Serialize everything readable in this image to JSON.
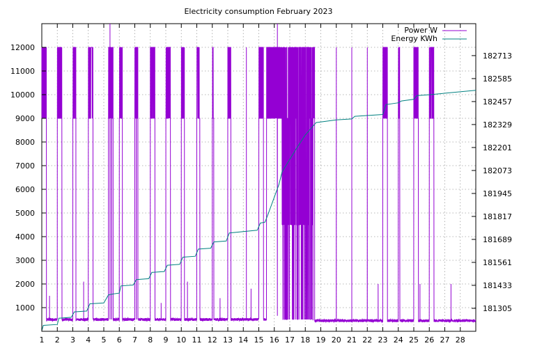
{
  "chart_data": {
    "type": "line",
    "title": "Electricity consumption February 2023",
    "xlabel": "",
    "ylabel": "",
    "y2label": "",
    "xlim": [
      1,
      29
    ],
    "ylim": [
      0,
      13000
    ],
    "y2lim": [
      181177,
      182891
    ],
    "x_ticks": [
      1,
      2,
      3,
      4,
      5,
      6,
      7,
      8,
      9,
      10,
      11,
      12,
      13,
      14,
      15,
      16,
      17,
      18,
      19,
      20,
      21,
      22,
      23,
      24,
      25,
      26,
      27,
      28
    ],
    "y_ticks": [
      1000,
      2000,
      3000,
      4000,
      5000,
      6000,
      7000,
      8000,
      9000,
      10000,
      11000,
      12000
    ],
    "y2_ticks": [
      181305,
      181433,
      181561,
      181689,
      181817,
      181945,
      182073,
      182201,
      182329,
      182457,
      182585,
      182713
    ],
    "grid": true,
    "legend_position": "top-right",
    "series": [
      {
        "name": "Power W",
        "axis": "left",
        "color": "#9400d3",
        "baseline": [
          [
            1,
            500
          ],
          [
            15.5,
            500
          ],
          [
            16.4,
            700
          ],
          [
            18.6,
            450
          ],
          [
            29,
            450
          ]
        ],
        "bursts": [
          [
            1,
            1.3
          ],
          [
            2,
            2.3
          ],
          [
            3,
            3.2
          ],
          [
            4,
            4.3
          ],
          [
            5.3,
            5.6
          ],
          [
            6,
            6.2
          ],
          [
            7,
            7.2
          ],
          [
            8,
            8.3
          ],
          [
            9,
            9.3
          ],
          [
            10,
            10.2
          ],
          [
            11,
            11.2
          ],
          [
            12,
            12.1
          ],
          [
            13,
            13.2
          ],
          [
            15,
            15.3
          ],
          [
            15.5,
            18.6
          ],
          [
            23,
            23.3
          ],
          [
            24,
            24.1
          ],
          [
            25,
            25.3
          ],
          [
            26,
            26.3
          ]
        ],
        "burst_low": 9000,
        "burst_high": 12000,
        "dense_region": [
          16.5,
          18.5
        ],
        "dense_low": 4500,
        "dense_low_alt": 500,
        "spikes": [
          [
            1.5,
            1500
          ],
          [
            3.7,
            2100
          ],
          [
            5.4,
            13000
          ],
          [
            5.5,
            12000
          ],
          [
            7.1,
            1800
          ],
          [
            8.7,
            1200
          ],
          [
            10.4,
            2100
          ],
          [
            12.5,
            1400
          ],
          [
            14.5,
            1800
          ],
          [
            14.2,
            12000
          ],
          [
            16.2,
            13000
          ],
          [
            18.5,
            7200
          ],
          [
            20,
            12000
          ],
          [
            21,
            12000
          ],
          [
            22,
            12000
          ],
          [
            22.7,
            2000
          ],
          [
            25.4,
            2000
          ],
          [
            27.4,
            2000
          ]
        ]
      },
      {
        "name": "Energy KWh",
        "axis": "right",
        "color": "#008080",
        "x": [
          1,
          1.1,
          2,
          2.1,
          2.9,
          3.1,
          3.9,
          4.1,
          5,
          5.3,
          5.6,
          6,
          6.1,
          6.9,
          7.1,
          7.9,
          8.1,
          8.9,
          9.1,
          9.9,
          10.1,
          10.9,
          11.1,
          11.9,
          12.1,
          12.9,
          13.1,
          14.9,
          15.1,
          15.4,
          15.6,
          16.3,
          16.5,
          17,
          17.5,
          18,
          18.5,
          18.7,
          20,
          21,
          21.2,
          23,
          23.2,
          24,
          24.2,
          25,
          25.2,
          26,
          29
        ],
        "y": [
          181180,
          181210,
          181215,
          181250,
          181255,
          181285,
          181290,
          181330,
          181335,
          181380,
          181385,
          181390,
          181430,
          181435,
          181465,
          181470,
          181505,
          181510,
          181545,
          181550,
          181590,
          181595,
          181635,
          181640,
          181675,
          181680,
          181725,
          181740,
          181780,
          181785,
          181830,
          181995,
          182065,
          182135,
          182205,
          182270,
          182320,
          182340,
          182355,
          182360,
          182375,
          182385,
          182440,
          182450,
          182460,
          182470,
          182490,
          182495,
          182520
        ]
      }
    ]
  }
}
